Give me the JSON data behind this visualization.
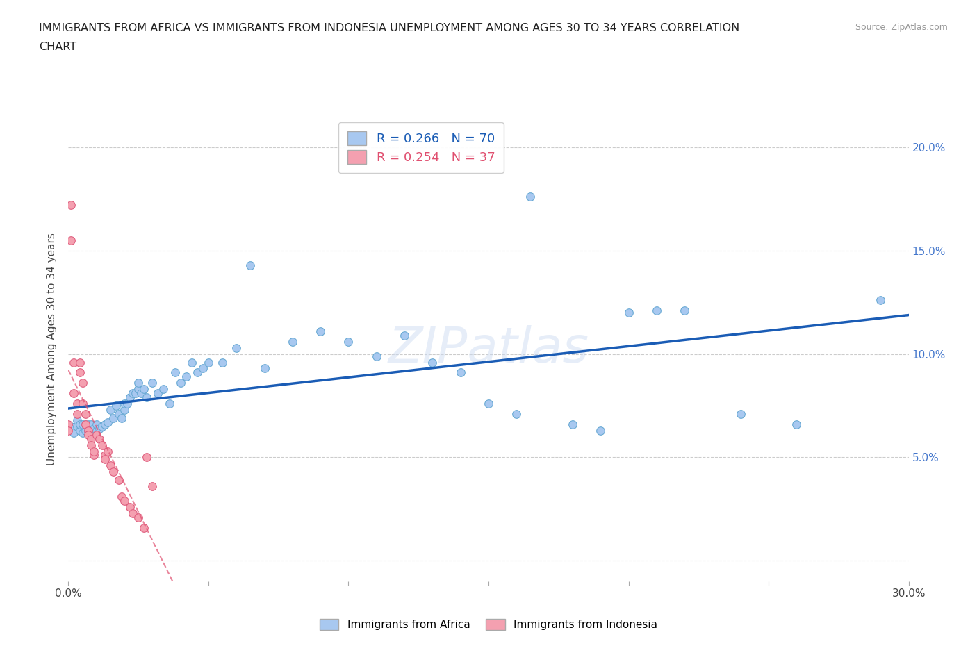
{
  "title_line1": "IMMIGRANTS FROM AFRICA VS IMMIGRANTS FROM INDONESIA UNEMPLOYMENT AMONG AGES 30 TO 34 YEARS CORRELATION",
  "title_line2": "CHART",
  "source_text": "Source: ZipAtlas.com",
  "ylabel": "Unemployment Among Ages 30 to 34 years",
  "xlim": [
    0.0,
    0.3
  ],
  "ylim": [
    -0.01,
    0.215
  ],
  "xticks": [
    0.0,
    0.05,
    0.1,
    0.15,
    0.2,
    0.25,
    0.3
  ],
  "yticks": [
    0.0,
    0.05,
    0.1,
    0.15,
    0.2
  ],
  "africa_color": "#a8c8f0",
  "africa_edge": "#6aaad4",
  "indonesia_color": "#f4a0b0",
  "indonesia_edge": "#e06080",
  "africa_line_color": "#1a5cb5",
  "indonesia_line_color": "#e05070",
  "grid_color": "#cccccc",
  "africa_R": 0.266,
  "africa_N": 70,
  "indonesia_R": 0.254,
  "indonesia_N": 37,
  "africa_x": [
    0.001,
    0.002,
    0.003,
    0.003,
    0.004,
    0.004,
    0.005,
    0.005,
    0.006,
    0.006,
    0.007,
    0.007,
    0.008,
    0.008,
    0.009,
    0.01,
    0.01,
    0.011,
    0.012,
    0.013,
    0.014,
    0.015,
    0.016,
    0.017,
    0.018,
    0.019,
    0.02,
    0.02,
    0.021,
    0.022,
    0.023,
    0.024,
    0.025,
    0.025,
    0.026,
    0.027,
    0.028,
    0.03,
    0.032,
    0.034,
    0.036,
    0.038,
    0.04,
    0.042,
    0.044,
    0.046,
    0.048,
    0.05,
    0.055,
    0.06,
    0.065,
    0.07,
    0.08,
    0.09,
    0.1,
    0.11,
    0.12,
    0.13,
    0.14,
    0.15,
    0.16,
    0.165,
    0.18,
    0.19,
    0.2,
    0.21,
    0.22,
    0.24,
    0.26,
    0.29
  ],
  "africa_y": [
    0.065,
    0.062,
    0.065,
    0.068,
    0.063,
    0.066,
    0.062,
    0.066,
    0.063,
    0.066,
    0.063,
    0.066,
    0.063,
    0.066,
    0.064,
    0.063,
    0.066,
    0.064,
    0.065,
    0.066,
    0.067,
    0.073,
    0.069,
    0.075,
    0.071,
    0.069,
    0.073,
    0.076,
    0.076,
    0.079,
    0.081,
    0.081,
    0.083,
    0.086,
    0.081,
    0.083,
    0.079,
    0.086,
    0.081,
    0.083,
    0.076,
    0.091,
    0.086,
    0.089,
    0.096,
    0.091,
    0.093,
    0.096,
    0.096,
    0.103,
    0.143,
    0.093,
    0.106,
    0.111,
    0.106,
    0.099,
    0.109,
    0.096,
    0.091,
    0.076,
    0.071,
    0.176,
    0.066,
    0.063,
    0.12,
    0.121,
    0.121,
    0.071,
    0.066,
    0.126
  ],
  "indonesia_x": [
    0.0,
    0.0,
    0.001,
    0.001,
    0.002,
    0.002,
    0.003,
    0.003,
    0.004,
    0.004,
    0.005,
    0.005,
    0.006,
    0.006,
    0.007,
    0.007,
    0.008,
    0.008,
    0.009,
    0.009,
    0.01,
    0.011,
    0.012,
    0.013,
    0.013,
    0.014,
    0.015,
    0.016,
    0.018,
    0.019,
    0.02,
    0.022,
    0.023,
    0.025,
    0.027,
    0.028,
    0.03
  ],
  "indonesia_y": [
    0.066,
    0.063,
    0.172,
    0.155,
    0.096,
    0.081,
    0.076,
    0.071,
    0.096,
    0.091,
    0.086,
    0.076,
    0.066,
    0.071,
    0.063,
    0.061,
    0.059,
    0.056,
    0.051,
    0.053,
    0.061,
    0.059,
    0.056,
    0.051,
    0.049,
    0.053,
    0.046,
    0.043,
    0.039,
    0.031,
    0.029,
    0.026,
    0.023,
    0.021,
    0.016,
    0.05,
    0.036
  ]
}
